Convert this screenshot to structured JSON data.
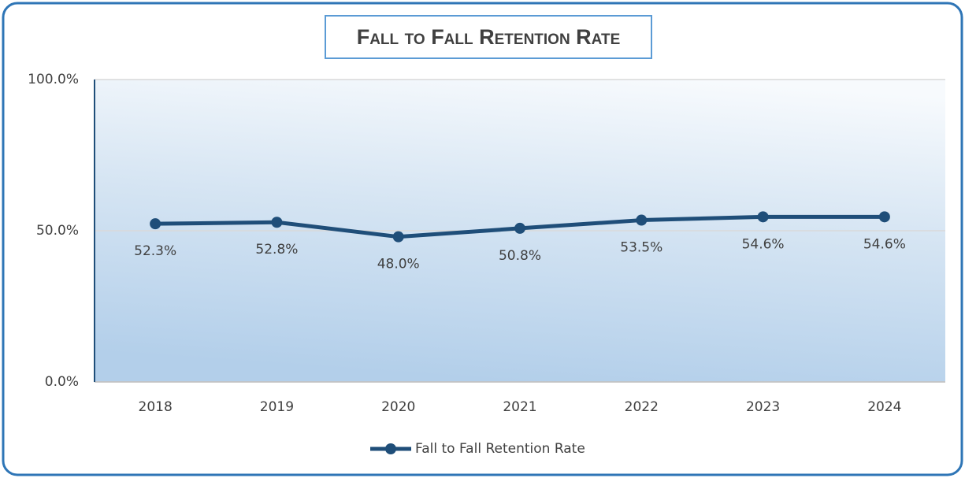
{
  "chart_data": {
    "type": "line",
    "title": "Fall to Fall Retention Rate",
    "categories": [
      "2018",
      "2019",
      "2020",
      "2021",
      "2022",
      "2023",
      "2024"
    ],
    "series": [
      {
        "name": "Fall to Fall Retention Rate",
        "color": "#1f4e79",
        "values": [
          52.3,
          52.8,
          48.0,
          50.8,
          53.5,
          54.6,
          54.6
        ],
        "value_labels": [
          "52.3%",
          "52.8%",
          "48.0%",
          "50.8%",
          "53.5%",
          "54.6%",
          "54.6%"
        ]
      }
    ],
    "ylim": [
      0,
      100
    ],
    "yticks": [
      {
        "value": 0,
        "label": "0.0%"
      },
      {
        "value": 50,
        "label": "50.0%"
      },
      {
        "value": 100,
        "label": "100.0%"
      }
    ],
    "grid": true,
    "legend": "bottom"
  }
}
